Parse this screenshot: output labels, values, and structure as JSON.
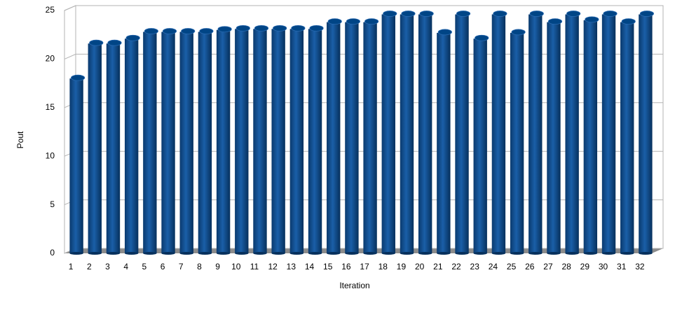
{
  "chart_data": {
    "type": "bar",
    "x_label": "Iteration",
    "y_label": "Pout",
    "categories": [
      "1",
      "2",
      "3",
      "4",
      "5",
      "6",
      "7",
      "8",
      "9",
      "10",
      "11",
      "12",
      "13",
      "14",
      "15",
      "16",
      "17",
      "18",
      "19",
      "20",
      "21",
      "22",
      "23",
      "24",
      "25",
      "26",
      "27",
      "28",
      "29",
      "30",
      "31",
      "32"
    ],
    "values": [
      18,
      21.6,
      21.6,
      22.1,
      22.8,
      22.8,
      22.8,
      22.8,
      23,
      23.1,
      23.1,
      23.1,
      23.1,
      23.1,
      23.8,
      23.8,
      23.8,
      24.6,
      24.6,
      24.6,
      22.7,
      24.6,
      22.1,
      24.6,
      22.7,
      24.6,
      23.8,
      24.6,
      24,
      24.6,
      23.8,
      24.6
    ],
    "color": "#004586",
    "ylim": [
      0,
      25
    ],
    "yticks": [
      0,
      5,
      10,
      15,
      20,
      25
    ],
    "grid": true
  }
}
